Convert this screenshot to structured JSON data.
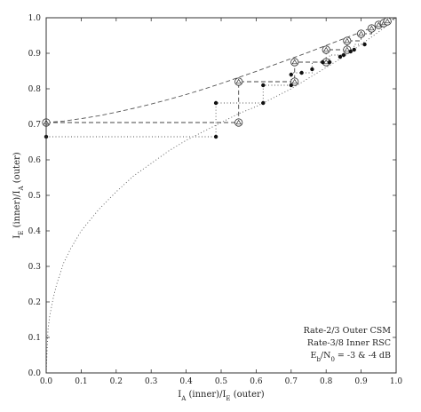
{
  "chart_data": {
    "type": "line",
    "xlabel": {
      "main": "I",
      "sub1": "A",
      "mid": " (inner)/I",
      "sub2": "E",
      "tail": " (outer)"
    },
    "ylabel": {
      "main": "I",
      "sub1": "E",
      "mid": " (inner)/I",
      "sub2": "A",
      "tail": " (outer)"
    },
    "xlim": [
      0,
      1
    ],
    "ylim": [
      0,
      1
    ],
    "xticks": [
      "0.0",
      "0.1",
      "0.2",
      "0.3",
      "0.4",
      "0.5",
      "0.6",
      "0.7",
      "0.8",
      "0.9",
      "1.0"
    ],
    "yticks": [
      "0.0",
      "0.1",
      "0.2",
      "0.3",
      "0.4",
      "0.5",
      "0.6",
      "0.7",
      "0.8",
      "0.9",
      "1.0"
    ],
    "grid": false,
    "legend": {
      "placement": "bottom-right",
      "lines": [
        "Rate-2/3 Outer CSM",
        "Rate-3/8 Inner RSC"
      ],
      "eb": {
        "main": "E",
        "sub1": "b",
        "mid": "/N",
        "sub2": "0",
        "tail": " = -3 & -4 dB"
      }
    },
    "series": [
      {
        "style": "dashed-curve",
        "x": [
          0.0,
          0.05,
          0.1,
          0.15,
          0.2,
          0.25,
          0.3,
          0.35,
          0.4,
          0.45,
          0.5,
          0.55,
          0.6,
          0.65,
          0.7,
          0.75,
          0.8,
          0.85,
          0.9,
          0.95,
          1.0
        ],
        "y": [
          0.705,
          0.709,
          0.716,
          0.724,
          0.734,
          0.745,
          0.757,
          0.77,
          0.784,
          0.799,
          0.815,
          0.832,
          0.849,
          0.867,
          0.885,
          0.903,
          0.922,
          0.941,
          0.96,
          0.98,
          1.0
        ]
      },
      {
        "style": "dotted-curve",
        "x": [
          0.0,
          0.005,
          0.01,
          0.02,
          0.03,
          0.05,
          0.07,
          0.1,
          0.15,
          0.2,
          0.25,
          0.3,
          0.35,
          0.4,
          0.45,
          0.5,
          0.55,
          0.6,
          0.65,
          0.7,
          0.75,
          0.8,
          0.85,
          0.9,
          0.95,
          1.0
        ],
        "y": [
          0.0,
          0.12,
          0.16,
          0.21,
          0.25,
          0.31,
          0.35,
          0.4,
          0.46,
          0.51,
          0.555,
          0.59,
          0.625,
          0.655,
          0.68,
          0.705,
          0.73,
          0.75,
          0.775,
          0.8,
          0.83,
          0.86,
          0.89,
          0.925,
          0.96,
          1.0
        ]
      },
      {
        "style": "dashed-trajectory",
        "x": [
          0.0,
          0.55,
          0.55,
          0.71,
          0.71,
          0.8,
          0.8,
          0.86,
          0.86,
          0.9,
          0.9,
          0.93,
          0.93,
          0.95,
          0.95,
          0.965,
          0.965,
          0.975
        ],
        "y": [
          0.705,
          0.705,
          0.82,
          0.82,
          0.875,
          0.875,
          0.91,
          0.91,
          0.935,
          0.935,
          0.955,
          0.955,
          0.97,
          0.97,
          0.98,
          0.98,
          0.985,
          0.985
        ]
      },
      {
        "style": "dotted-trajectory",
        "x": [
          0.0,
          0.485,
          0.485,
          0.62,
          0.62,
          0.7,
          0.7,
          0.76,
          0.76,
          0.81,
          0.81,
          0.85,
          0.85,
          0.88,
          0.88,
          0.91
        ],
        "y": [
          0.665,
          0.665,
          0.76,
          0.76,
          0.81,
          0.81,
          0.845,
          0.845,
          0.875,
          0.875,
          0.895,
          0.895,
          0.91,
          0.91,
          0.925,
          0.925
        ]
      },
      {
        "style": "circle-markers",
        "x": [
          0.0,
          0.55,
          0.55,
          0.71,
          0.71,
          0.8,
          0.8,
          0.86,
          0.86,
          0.9,
          0.93,
          0.95,
          0.965,
          0.975
        ],
        "y": [
          0.705,
          0.705,
          0.82,
          0.82,
          0.875,
          0.875,
          0.91,
          0.91,
          0.935,
          0.955,
          0.97,
          0.98,
          0.985,
          0.99
        ]
      },
      {
        "style": "dot-markers",
        "x": [
          0.0,
          0.485,
          0.485,
          0.62,
          0.62,
          0.7,
          0.7,
          0.73,
          0.76,
          0.79,
          0.81,
          0.84,
          0.85,
          0.87,
          0.88,
          0.91
        ],
        "y": [
          0.665,
          0.665,
          0.76,
          0.76,
          0.81,
          0.81,
          0.84,
          0.845,
          0.855,
          0.875,
          0.875,
          0.89,
          0.895,
          0.905,
          0.91,
          0.925
        ]
      }
    ]
  }
}
